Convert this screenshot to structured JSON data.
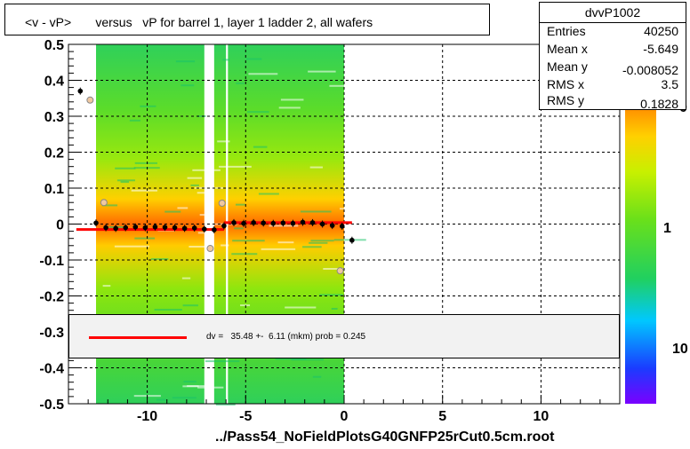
{
  "title": "<v - vP>       versus   vP for barrel 1, layer 1 ladder 2, all wafers",
  "footer": "../Pass54_NoFieldPlotsG40GNFP25rCut0.5cm.root",
  "stats": {
    "name": "dvvP1002",
    "rows": [
      {
        "label": "Entries",
        "value": "40250"
      },
      {
        "label": "Mean x",
        "value": "-5.649"
      },
      {
        "label": "Mean y",
        "value": "-0.008052"
      },
      {
        "label": "RMS x",
        "value": "3.5"
      },
      {
        "label": "RMS y",
        "value": "0.1828"
      }
    ]
  },
  "legend": {
    "text": "dv =   35.48 +-  6.11 (mkm) prob = 0.245",
    "line_color": "#ff0000"
  },
  "chart_data": {
    "type": "heatmap",
    "xlim": [
      -14,
      14
    ],
    "ylim": [
      -0.5,
      0.5
    ],
    "x_ticks": [
      -10,
      -5,
      0,
      5,
      10
    ],
    "x_tick_labels": [
      "-10",
      "-5",
      "0",
      "5",
      "10"
    ],
    "y_ticks": [
      -0.5,
      -0.4,
      -0.3,
      -0.2,
      -0.1,
      0,
      0.1,
      0.2,
      0.3,
      0.4,
      0.5
    ],
    "y_tick_labels": [
      "-0.5",
      "-0.4",
      "-0.3",
      "-0.2",
      "-0.1",
      "0",
      "0.1",
      "0.2",
      "0.3",
      "0.4",
      "0.5"
    ],
    "grid": true,
    "logz": true,
    "colorbar_tick_labels": [
      "1",
      "10"
    ],
    "colorbar_partial_label": "0",
    "colors": {
      "fill_edge": "#22c55e",
      "fill_mid": "#7ae01a",
      "fill_core": "#ff8c00",
      "fill_peak": "#ff5a00"
    },
    "mean_points": [
      {
        "x": -13.4,
        "y": 0.37
      },
      {
        "x": -12.6,
        "y": 0.003
      },
      {
        "x": -12.1,
        "y": -0.01
      },
      {
        "x": -11.6,
        "y": -0.012
      },
      {
        "x": -11.1,
        "y": -0.01
      },
      {
        "x": -10.6,
        "y": -0.008
      },
      {
        "x": -10.1,
        "y": -0.01
      },
      {
        "x": -9.6,
        "y": -0.008
      },
      {
        "x": -9.1,
        "y": -0.009
      },
      {
        "x": -8.6,
        "y": -0.01
      },
      {
        "x": -8.1,
        "y": -0.012
      },
      {
        "x": -7.6,
        "y": -0.011
      },
      {
        "x": -7.1,
        "y": -0.014
      },
      {
        "x": -6.6,
        "y": -0.016
      },
      {
        "x": -6.1,
        "y": -0.005
      },
      {
        "x": -5.6,
        "y": 0.004
      },
      {
        "x": -5.1,
        "y": 0.002
      },
      {
        "x": -4.6,
        "y": 0.004
      },
      {
        "x": -4.1,
        "y": 0.003
      },
      {
        "x": -3.6,
        "y": 0.002
      },
      {
        "x": -3.1,
        "y": 0.003
      },
      {
        "x": -2.6,
        "y": 0.002
      },
      {
        "x": -2.1,
        "y": 0.005
      },
      {
        "x": -1.6,
        "y": 0.004
      },
      {
        "x": -1.1,
        "y": 0.0
      },
      {
        "x": -0.6,
        "y": -0.004
      },
      {
        "x": -0.1,
        "y": -0.006
      },
      {
        "x": 0.4,
        "y": -0.045
      }
    ],
    "rms_points": [
      {
        "x": -12.9,
        "y": 0.345
      },
      {
        "x": -12.2,
        "y": 0.06
      },
      {
        "x": -6.8,
        "y": -0.068
      },
      {
        "x": -6.2,
        "y": 0.058
      },
      {
        "x": -0.2,
        "y": -0.13
      }
    ],
    "fit_segments": [
      {
        "x1": -13.6,
        "y1": -0.015,
        "x2": -6.1,
        "y2": -0.015
      },
      {
        "x1": -6.1,
        "y1": 0.004,
        "x2": 0.4,
        "y2": 0.004
      }
    ]
  }
}
